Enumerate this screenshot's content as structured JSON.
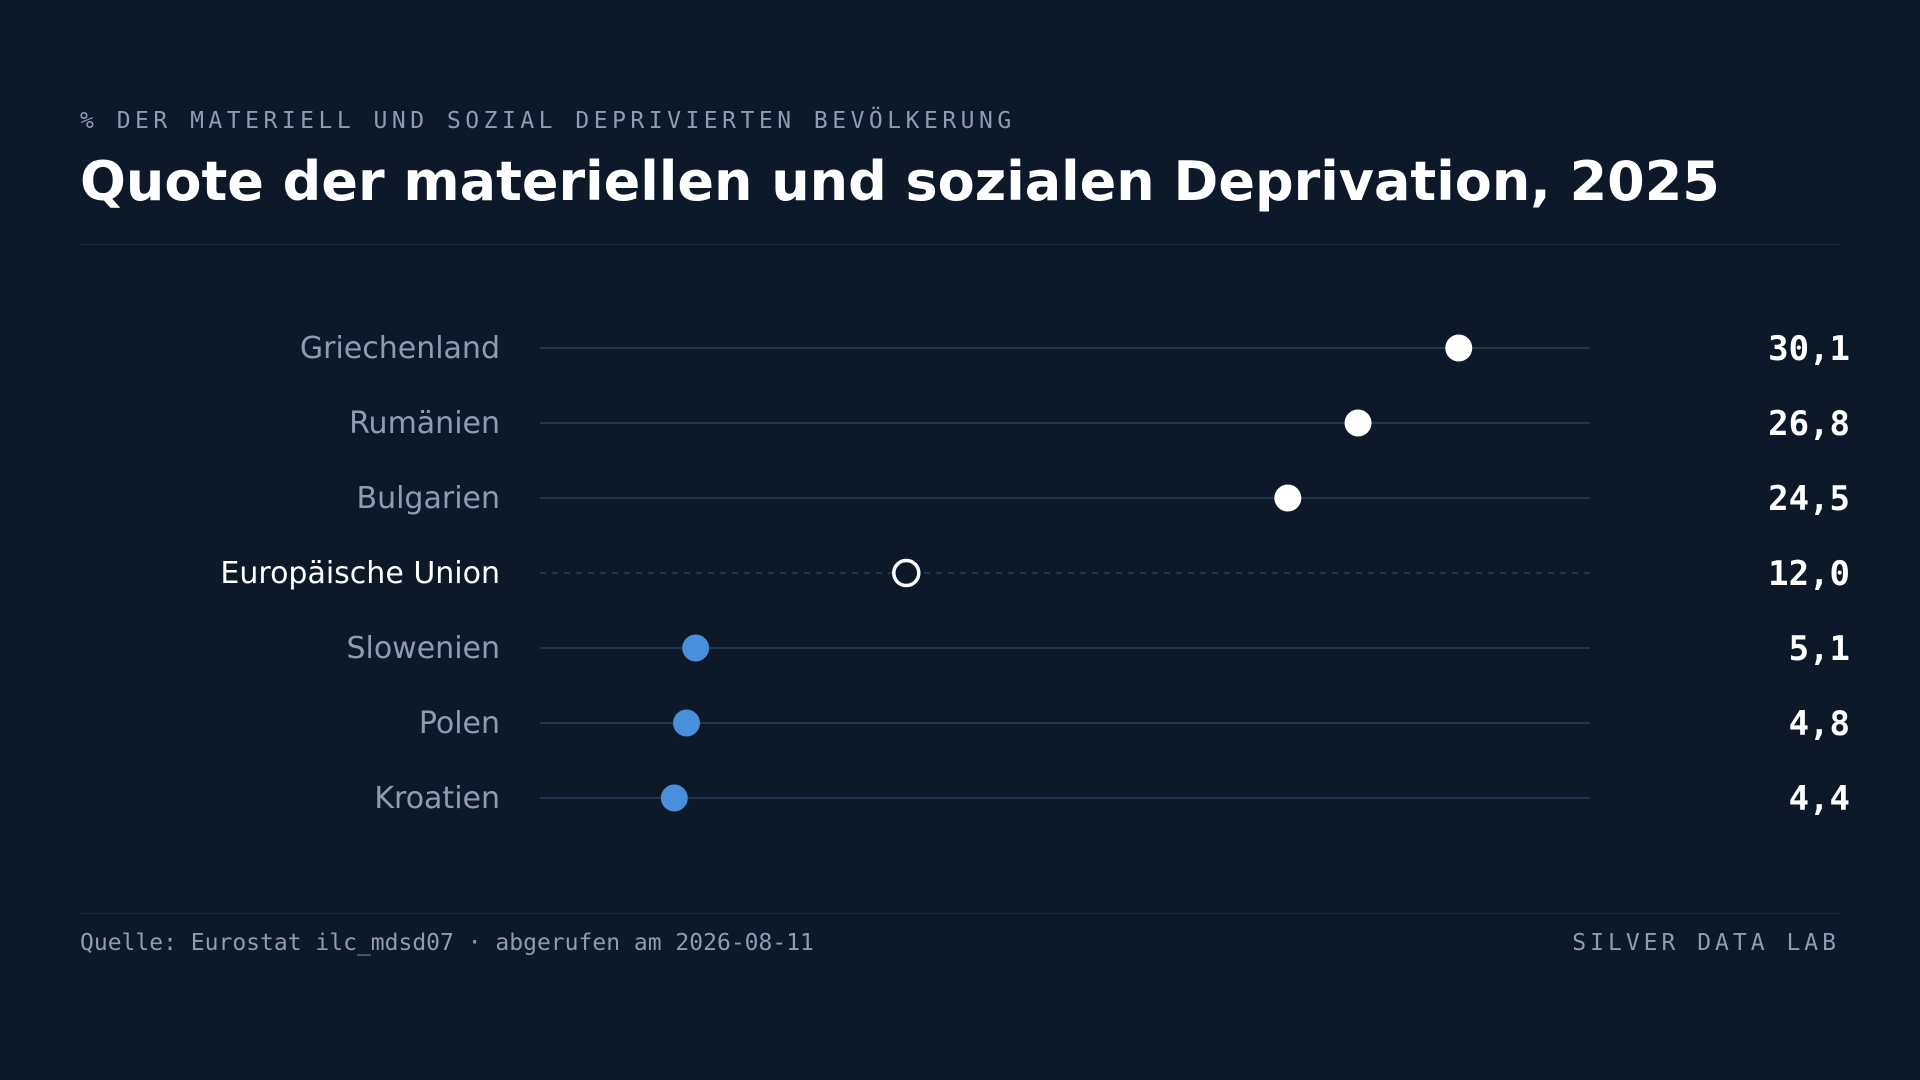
{
  "header": {
    "subtitle": "% DER MATERIELL UND SOZIAL DEPRIVIERTEN BEVÖLKERUNG",
    "title": "Quote der materiellen und sozialen Deprivation, 2025"
  },
  "footer": {
    "source": "Quelle: Eurostat ilc_mdsd07 · abgerufen am 2026-08-11",
    "brand": "SILVER DATA LAB"
  },
  "colors": {
    "background": "#0d1929",
    "high": "#ffffff",
    "low": "#4a8fdb",
    "reference": "#ffffff",
    "track": "#1f3550",
    "label": "#8d9cb3",
    "reference_label": "#ffffff",
    "value": "#ffffff"
  },
  "chart_data": {
    "type": "dot",
    "title": "Quote der materiellen und sozialen Deprivation, 2025",
    "subtitle": "% DER MATERIELL UND SOZIAL DEPRIVIERTEN BEVÖLKERUNG",
    "xlim": [
      0,
      34.4
    ],
    "grid": false,
    "legend": "none",
    "categories": [
      "Griechenland",
      "Rumänien",
      "Bulgarien",
      "Europäische Union",
      "Slowenien",
      "Polen",
      "Kroatien"
    ],
    "values": [
      30.1,
      26.8,
      24.5,
      12.0,
      5.1,
      4.8,
      4.4
    ],
    "value_labels": [
      "30,1",
      "26,8",
      "24,5",
      "12,0",
      "5,1",
      "4,8",
      "4,4"
    ],
    "reference_category": "Europäische Union",
    "groups": [
      "high",
      "high",
      "high",
      "reference",
      "low",
      "low",
      "low"
    ]
  }
}
